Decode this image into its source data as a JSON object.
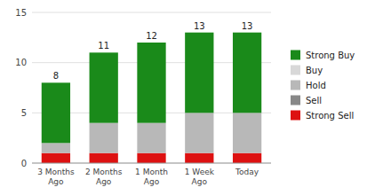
{
  "chart_data": {
    "type": "bar",
    "stacked": true,
    "categories": [
      "3 Months\nAgo",
      "2 Months\nAgo",
      "1 Month\nAgo",
      "1 Week\nAgo",
      "Today"
    ],
    "series": [
      {
        "name": "Strong Sell",
        "color": "#dd1111",
        "values": [
          1,
          1,
          1,
          1,
          1
        ]
      },
      {
        "name": "Sell",
        "color": "#888888",
        "values": [
          0,
          0,
          0,
          0,
          0
        ]
      },
      {
        "name": "Hold",
        "color": "#b8b8b8",
        "values": [
          1,
          3,
          3,
          4,
          4
        ]
      },
      {
        "name": "Buy",
        "color": "#d8d8d8",
        "values": [
          0,
          0,
          0,
          0,
          0
        ]
      },
      {
        "name": "Strong Buy",
        "color": "#1a8a1a",
        "values": [
          6,
          7,
          8,
          8,
          8
        ]
      }
    ],
    "totals": [
      8,
      11,
      12,
      13,
      13
    ],
    "ylim": [
      0,
      15
    ],
    "yticks": [
      0,
      5,
      10,
      15
    ],
    "grid": true,
    "legend": "right"
  }
}
